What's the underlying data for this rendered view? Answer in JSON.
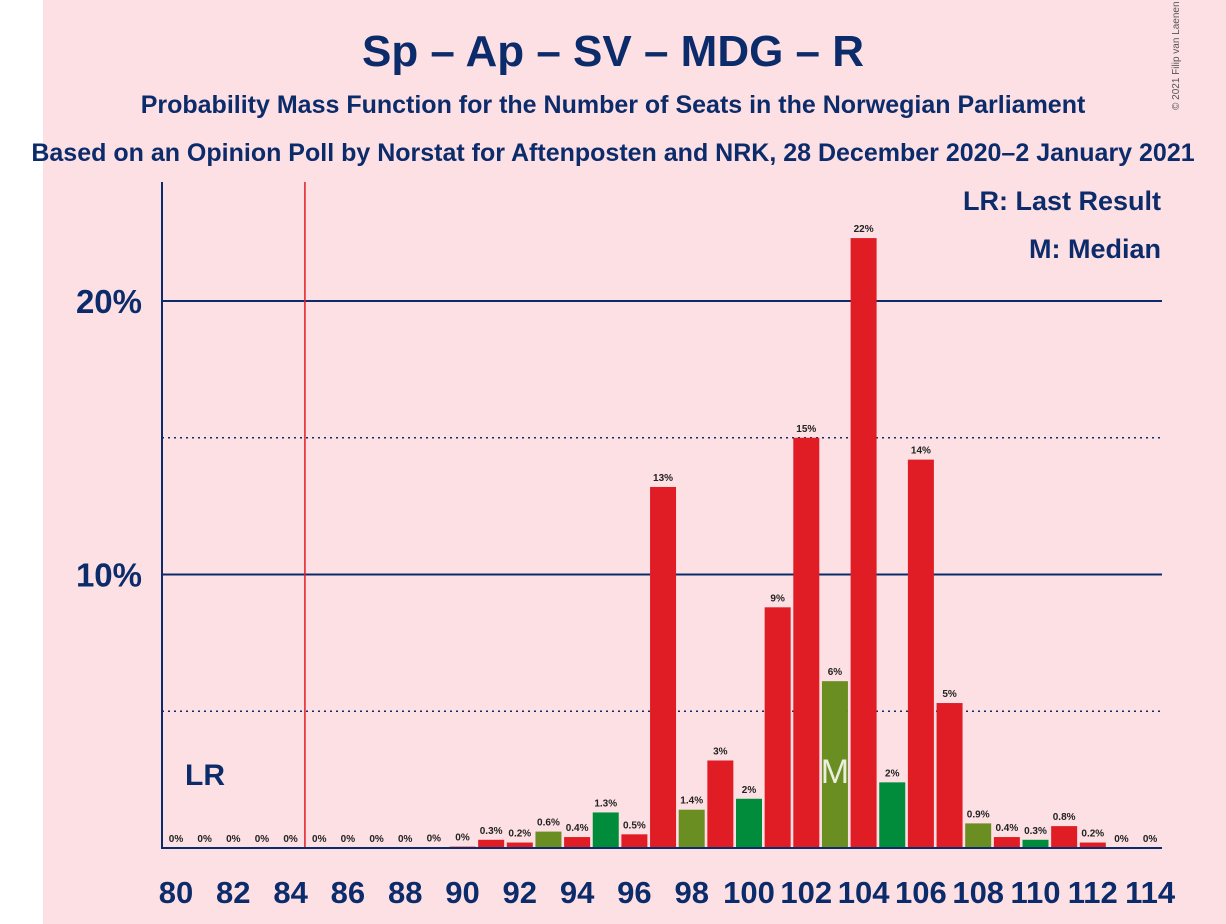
{
  "copyright": "© 2021 Filip van Laenen",
  "chart_data": {
    "type": "bar",
    "title": "Sp – Ap – SV – MDG – R",
    "subtitle": "Probability Mass Function for the Number of Seats in the Norwegian Parliament",
    "subtitle2": "Based on an Opinion Poll by Norstat for Aftenposten and NRK, 28 December 2020–2 January 2021",
    "legend": {
      "lr": "LR: Last Result",
      "m": "M: Median",
      "placement": "top-right"
    },
    "lr_label": "LR",
    "median_label": "M",
    "last_result_seat": 84.5,
    "median_seat": 103,
    "xlim": [
      80,
      114
    ],
    "ylim": [
      0,
      23
    ],
    "yticks": [
      {
        "value": 10,
        "label": "10%"
      },
      {
        "value": 20,
        "label": "20%"
      }
    ],
    "dotted_lines": [
      5,
      15
    ],
    "xtick_labels": [
      "80",
      "82",
      "84",
      "86",
      "88",
      "90",
      "92",
      "94",
      "96",
      "98",
      "100",
      "102",
      "104",
      "106",
      "108",
      "110",
      "112",
      "114"
    ],
    "colors": {
      "red": "#e01c24",
      "green": "#008c3a",
      "olive": "#6b8e23",
      "navy": "#0c2b6b",
      "lr_line": "#e01c24"
    },
    "bars": [
      {
        "seat": 80,
        "value": 0,
        "label": "0%",
        "color": "red"
      },
      {
        "seat": 81,
        "value": 0,
        "label": "0%",
        "color": "red"
      },
      {
        "seat": 82,
        "value": 0,
        "label": "0%",
        "color": "red"
      },
      {
        "seat": 83,
        "value": 0,
        "label": "0%",
        "color": "red"
      },
      {
        "seat": 84,
        "value": 0,
        "label": "0%",
        "color": "red"
      },
      {
        "seat": 85,
        "value": 0,
        "label": "0%",
        "color": "red"
      },
      {
        "seat": 86,
        "value": 0,
        "label": "0%",
        "color": "red"
      },
      {
        "seat": 87,
        "value": 0,
        "label": "0%",
        "color": "red"
      },
      {
        "seat": 88,
        "value": 0,
        "label": "0%",
        "color": "red"
      },
      {
        "seat": 89,
        "value": 0.02,
        "label": "0%",
        "color": "red"
      },
      {
        "seat": 90,
        "value": 0.05,
        "label": "0%",
        "color": "red"
      },
      {
        "seat": 91,
        "value": 0.3,
        "label": "0.3%",
        "color": "red"
      },
      {
        "seat": 92,
        "value": 0.2,
        "label": "0.2%",
        "color": "red"
      },
      {
        "seat": 93,
        "value": 0.6,
        "label": "0.6%",
        "color": "olive"
      },
      {
        "seat": 94,
        "value": 0.4,
        "label": "0.4%",
        "color": "red"
      },
      {
        "seat": 95,
        "value": 1.3,
        "label": "1.3%",
        "color": "green"
      },
      {
        "seat": 96,
        "value": 0.5,
        "label": "0.5%",
        "color": "red"
      },
      {
        "seat": 97,
        "value": 13.2,
        "label": "13%",
        "color": "red"
      },
      {
        "seat": 98,
        "value": 1.4,
        "label": "1.4%",
        "color": "olive"
      },
      {
        "seat": 99,
        "value": 3.2,
        "label": "3%",
        "color": "red"
      },
      {
        "seat": 100,
        "value": 1.8,
        "label": "2%",
        "color": "green"
      },
      {
        "seat": 101,
        "value": 8.8,
        "label": "9%",
        "color": "red"
      },
      {
        "seat": 102,
        "value": 15.0,
        "label": "15%",
        "color": "red"
      },
      {
        "seat": 103,
        "value": 6.1,
        "label": "6%",
        "color": "olive"
      },
      {
        "seat": 104,
        "value": 22.3,
        "label": "22%",
        "color": "red"
      },
      {
        "seat": 105,
        "value": 2.4,
        "label": "2%",
        "color": "green"
      },
      {
        "seat": 106,
        "value": 14.2,
        "label": "14%",
        "color": "red"
      },
      {
        "seat": 107,
        "value": 5.3,
        "label": "5%",
        "color": "red"
      },
      {
        "seat": 108,
        "value": 0.9,
        "label": "0.9%",
        "color": "olive"
      },
      {
        "seat": 109,
        "value": 0.4,
        "label": "0.4%",
        "color": "red"
      },
      {
        "seat": 110,
        "value": 0.3,
        "label": "0.3%",
        "color": "green"
      },
      {
        "seat": 111,
        "value": 0.8,
        "label": "0.8%",
        "color": "red"
      },
      {
        "seat": 112,
        "value": 0.2,
        "label": "0.2%",
        "color": "red"
      },
      {
        "seat": 113,
        "value": 0,
        "label": "0%",
        "color": "red"
      },
      {
        "seat": 114,
        "value": 0,
        "label": "0%",
        "color": "red"
      }
    ]
  }
}
